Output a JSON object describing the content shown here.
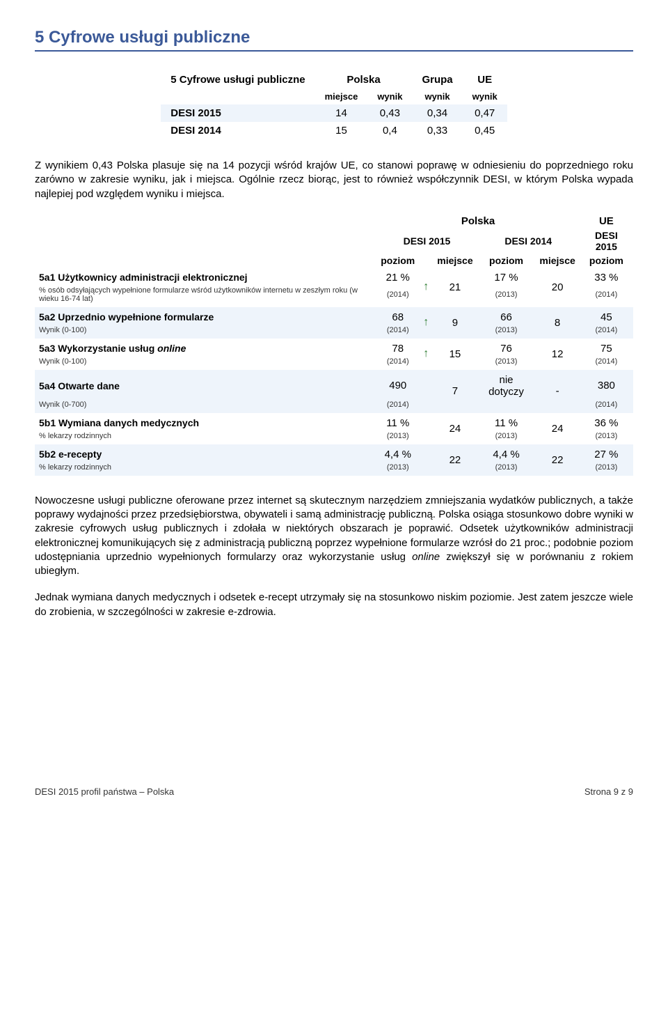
{
  "section": {
    "title": "5 Cyfrowe usługi publiczne"
  },
  "summary": {
    "row_header": "5 Cyfrowe usługi publiczne",
    "col_polska": "Polska",
    "col_polska_miejsce": "miejsce",
    "col_polska_wynik": "wynik",
    "col_grupa": "Grupa",
    "col_grupa_wynik": "wynik",
    "col_ue": "UE",
    "col_ue_wynik": "wynik",
    "rows": [
      {
        "label": "DESI 2015",
        "miejsce": "14",
        "pl_wynik": "0,43",
        "grupa": "0,34",
        "ue": "0,47"
      },
      {
        "label": "DESI 2014",
        "miejsce": "15",
        "pl_wynik": "0,4",
        "grupa": "0,33",
        "ue": "0,45"
      }
    ]
  },
  "intro": "Z wynikiem 0,43 Polska plasuje się na 14 pozycji wśród krajów UE, co stanowi poprawę w odniesieniu do poprzedniego roku zarówno w zakresie wyniku, jak i miejsca. Ogólnie rzecz biorąc, jest to również współczynnik DESI, w którym Polska wypada najlepiej pod względem wyniku i miejsca.",
  "detail": {
    "head_polska": "Polska",
    "head_ue": "UE",
    "head_desi2015": "DESI 2015",
    "head_desi2014": "DESI 2014",
    "head_desi2015_ue": "DESI 2015",
    "head_poziom": "poziom",
    "head_miejsce": "miejsce",
    "rows": [
      {
        "name": "5a1 Użytkownicy administracji elektronicznej",
        "sub": "% osób odsyłających wypełnione formularze wśród użytkowników internetu w zeszłym roku (w wieku 16-74 lat)",
        "v15": "21 %",
        "y15": "(2014)",
        "arrow": "↑",
        "r15": "21",
        "v14": "17 %",
        "y14": "(2013)",
        "r14": "20",
        "vue": "33 %",
        "yue": "(2014)",
        "alt": false
      },
      {
        "name": "5a2 Uprzednio wypełnione formularze",
        "sub": "Wynik (0-100)",
        "v15": "68",
        "y15": "(2014)",
        "arrow": "↑",
        "r15": "9",
        "v14": "66",
        "y14": "(2013)",
        "r14": "8",
        "vue": "45",
        "yue": "(2014)",
        "alt": true
      },
      {
        "name": "5a3 Wykorzystanie usług online",
        "sub": "Wynik (0-100)",
        "v15": "78",
        "y15": "(2014)",
        "arrow": "↑",
        "r15": "15",
        "v14": "76",
        "y14": "(2013)",
        "r14": "12",
        "vue": "75",
        "yue": "(2014)",
        "alt": false,
        "name_italic_word": "online"
      },
      {
        "name": "5a4 Otwarte dane",
        "sub": "Wynik (0-700)",
        "v15": "490",
        "y15": "(2014)",
        "arrow": "",
        "r15": "7",
        "v14": "nie dotyczy",
        "y14": "",
        "r14": "-",
        "vue": "380",
        "yue": "(2014)",
        "alt": true
      },
      {
        "name": "5b1 Wymiana danych medycznych",
        "sub": "% lekarzy rodzinnych",
        "v15": "11 %",
        "y15": "(2013)",
        "arrow": "",
        "r15": "24",
        "v14": "11 %",
        "y14": "(2013)",
        "r14": "24",
        "vue": "36 %",
        "yue": "(2013)",
        "alt": false
      },
      {
        "name": "5b2 e-recepty",
        "sub": "% lekarzy rodzinnych",
        "v15": "4,4 %",
        "y15": "(2013)",
        "arrow": "",
        "r15": "22",
        "v14": "4,4 %",
        "y14": "(2013)",
        "r14": "22",
        "vue": "27 %",
        "yue": "(2013)",
        "alt": true
      }
    ]
  },
  "para1_pre": "Nowoczesne usługi publiczne oferowane przez internet są skutecznym narzędziem zmniejszania wydatków publicznych, a także poprawy wydajności przez przedsiębiorstwa, obywateli i samą administrację publiczną. Polska osiąga stosunkowo dobre wyniki w zakresie cyfrowych usług publicznych i zdołała w niektórych obszarach je poprawić. Odsetek użytkowników administracji elektronicznej komunikujących się z administracją publiczną poprzez wypełnione formularze wzrósł do 21 proc.; podobnie poziom udostępniania uprzednio wypełnionych formularzy oraz wykorzystanie usług ",
  "para1_italic": "online",
  "para1_post": " zwiększył się w porównaniu z rokiem ubiegłym.",
  "para2": "Jednak wymiana danych medycznych i odsetek e-recept utrzymały się na stosunkowo niskim poziomie. Jest zatem jeszcze wiele do zrobienia, w szczególności w zakresie e-zdrowia.",
  "footer": {
    "left": "DESI 2015 profil państwa – Polska",
    "right": "Strona 9 z 9"
  },
  "style": {
    "accent_color": "#3b5998",
    "alt_row_bg": "#eef4fb",
    "arrow_color": "#2e7d32",
    "body_font_size": 15,
    "table_font_size": 14
  }
}
